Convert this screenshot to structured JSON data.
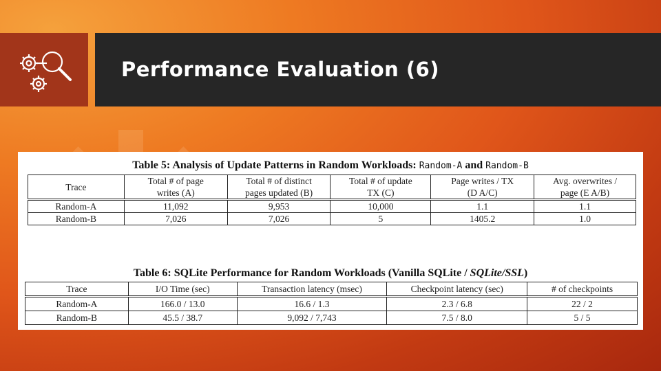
{
  "slide": {
    "title": "Performance Evaluation (6)",
    "icon": "gears-magnifier-icon",
    "background_accent": "#e0561a",
    "title_bar_color": "#262626",
    "icon_box_color": "#a2351a"
  },
  "table5": {
    "caption_prefix": "Table 5: Analysis of Update Patterns in Random Workloads:",
    "caption_code_a": "Random-A",
    "caption_and": "and",
    "caption_code_b": "Random-B",
    "headers": [
      [
        "Trace"
      ],
      [
        "Total # of page",
        "writes (A)"
      ],
      [
        "Total # of distinct",
        "pages updated (B)"
      ],
      [
        "Total # of update",
        "TX (C)"
      ],
      [
        "Page writes / TX",
        "(D    A/C)"
      ],
      [
        "Avg. overwrites /",
        "page (E    A/B)"
      ]
    ],
    "rows": [
      [
        "Random-A",
        "11,092",
        "9,953",
        "10,000",
        "1.1",
        "1.1"
      ],
      [
        "Random-B",
        "7,026",
        "7,026",
        "5",
        "1405.2",
        "1.0"
      ]
    ]
  },
  "table6": {
    "caption_prefix": "Table 6: SQLite Performance for Random Workloads (Vanilla SQLite /",
    "caption_italic": "SQLite/SSL",
    "caption_suffix": ")",
    "headers": [
      "Trace",
      "I/O Time (sec)",
      "Transaction latency (msec)",
      "Checkpoint latency (sec)",
      "# of checkpoints"
    ],
    "rows": [
      [
        "Random-A",
        "166.0 / 13.0",
        "16.6 / 1.3",
        "2.3 / 6.8",
        "22 / 2"
      ],
      [
        "Random-B",
        "45.5 / 38.7",
        "9,092 / 7,743",
        "7.5 / 8.0",
        "5 / 5"
      ]
    ]
  }
}
